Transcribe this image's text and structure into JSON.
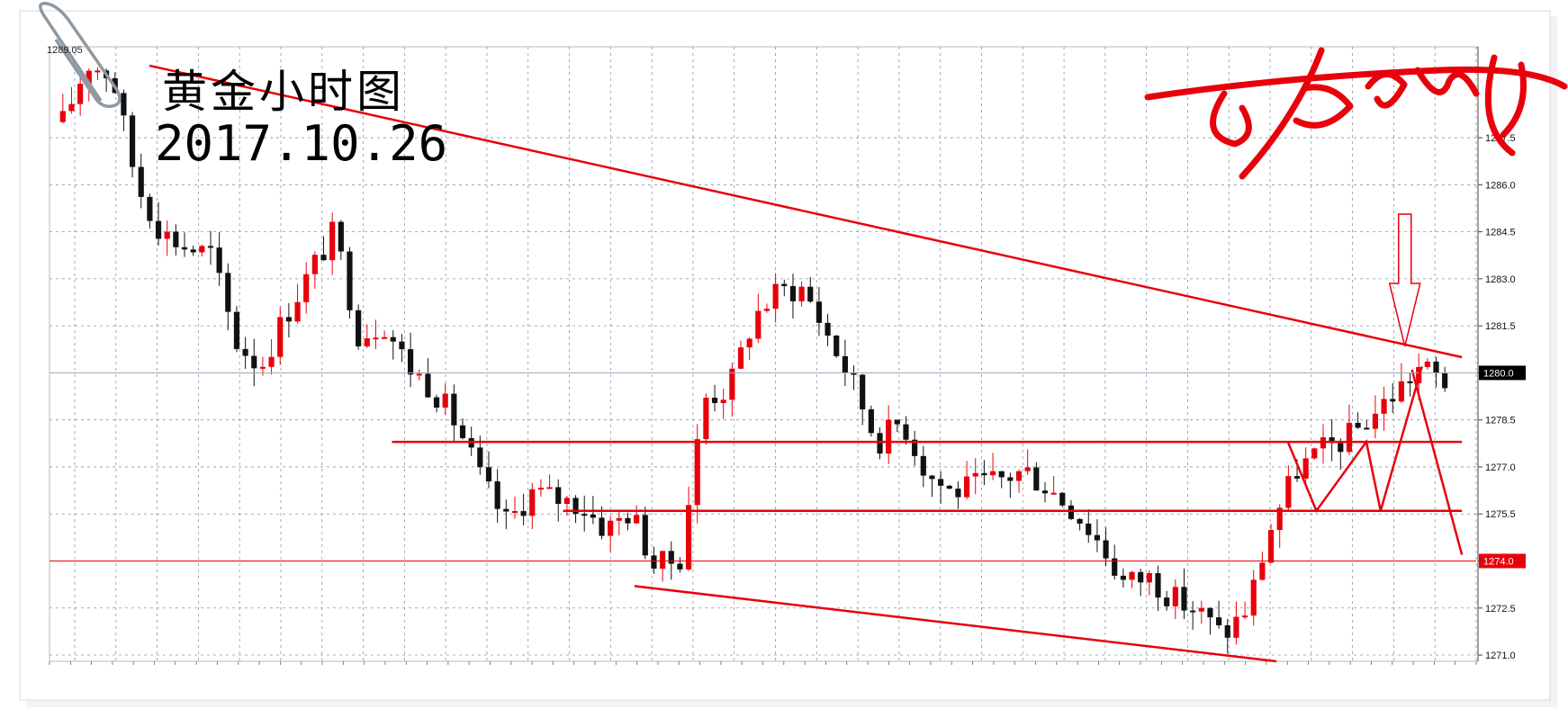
{
  "chart_data": {
    "type": "candlestick",
    "title": "黄金小时图",
    "subtitle": "2017.10.26",
    "corner_label": "1289.05",
    "y_ticks": [
      "1287.5",
      "1286.0",
      "1284.5",
      "1283.0",
      "1281.5",
      "1280.0",
      "1278.5",
      "1277.0",
      "1275.5",
      "1274.0",
      "1272.5",
      "1271.0"
    ],
    "ylim": [
      1270.8,
      1290.4
    ],
    "current_price": "1280.0",
    "marked_price": "1274.0",
    "price_series": [
      1288.0,
      1289.9,
      1289.5,
      1286.0,
      1284.5,
      1284.0,
      1283.8,
      1281.0,
      1280.2,
      1281.8,
      1283.2,
      1284.5,
      1281.2,
      1281.6,
      1280.2,
      1279.5,
      1278.3,
      1276.5,
      1275.2,
      1276.2,
      1276.0,
      1275.8,
      1275.0,
      1275.6,
      1273.8,
      1274.1,
      1279.2,
      1279.5,
      1281.8,
      1282.6,
      1282.7,
      1281.2,
      1279.7,
      1277.8,
      1278.5,
      1276.8,
      1276.2,
      1276.4,
      1276.6,
      1276.9,
      1276.3,
      1275.6,
      1274.6,
      1273.3,
      1273.5,
      1272.8,
      1272.4,
      1271.6,
      1272.5,
      1275.2,
      1276.9,
      1277.5,
      1277.9,
      1278.6,
      1279.4,
      1280.2,
      1279.7
    ],
    "drawn_lines": [
      {
        "name": "falling-resistance",
        "x": [
          0.07,
          0.99
        ],
        "y": [
          1289.8,
          1280.5
        ]
      },
      {
        "name": "falling-support",
        "x": [
          0.41,
          0.86
        ],
        "y": [
          1273.2,
          1270.8
        ]
      },
      {
        "name": "level-1277-8",
        "x": [
          0.24,
          0.99
        ],
        "y": [
          1277.8,
          1277.8
        ]
      },
      {
        "name": "level-1275-6",
        "x": [
          0.36,
          0.99
        ],
        "y": [
          1275.6,
          1275.6
        ]
      },
      {
        "name": "level-1274-0",
        "x": [
          0.0,
          1.0
        ],
        "y": [
          1274.0,
          1274.0
        ]
      },
      {
        "name": "projection-down",
        "x": [
          0.955,
          0.99
        ],
        "y": [
          1280.1,
          1274.2
        ]
      }
    ],
    "grid": true
  },
  "signature": "平安揭财",
  "colors": {
    "up": "#e8000b",
    "down": "#111111",
    "grid": "#8a96a8",
    "accent": "#e8000b"
  }
}
